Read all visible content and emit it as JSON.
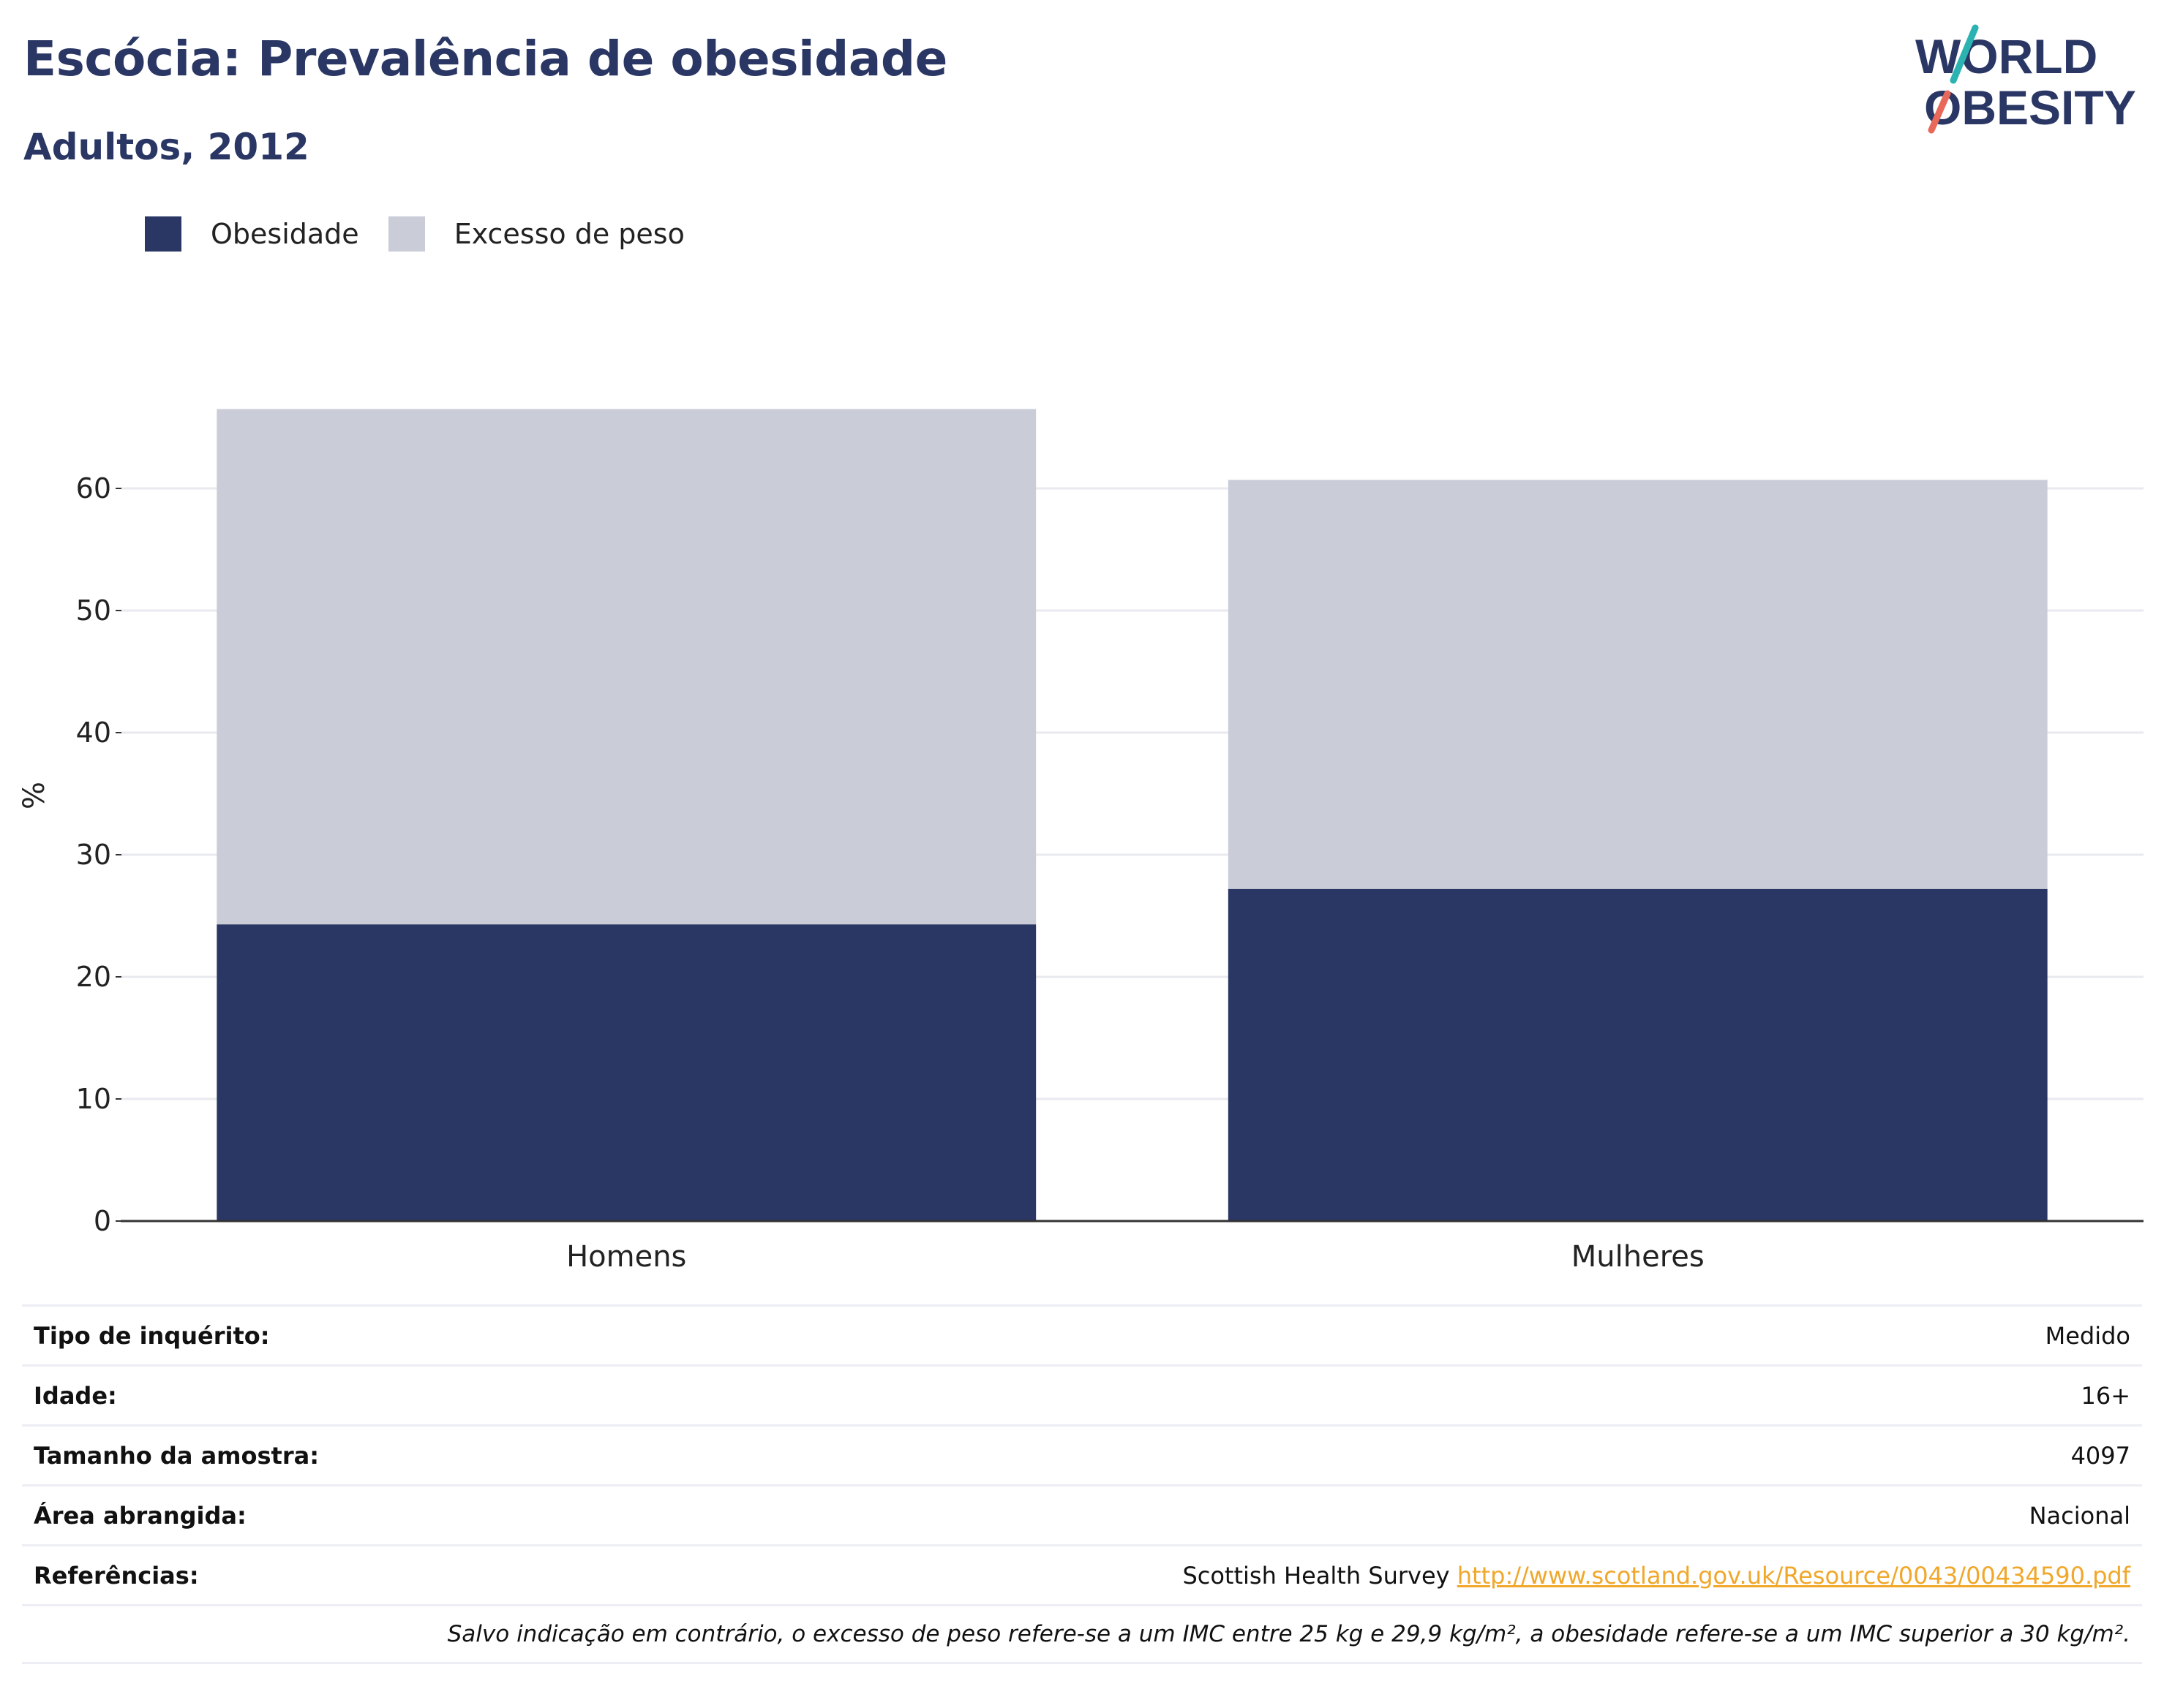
{
  "header": {
    "title": "Escócia: Prevalência de obesidade",
    "subtitle": "Adultos, 2012"
  },
  "logo": {
    "line1": "WORLD",
    "line2": "OBESITY"
  },
  "colors": {
    "obesity": "#2a3764",
    "overweight": "#caccd7",
    "accent_teal": "#2bb3b1",
    "accent_coral": "#e8685a",
    "link": "#f0a72a"
  },
  "legend": [
    {
      "label": "Obesidade",
      "color": "#2a3764"
    },
    {
      "label": "Excesso de peso",
      "color": "#caccd7"
    }
  ],
  "chart_data": {
    "type": "bar",
    "stacked": true,
    "categories": [
      "Homens",
      "Mulheres"
    ],
    "series": [
      {
        "name": "Obesidade",
        "values": [
          24.3,
          27.2
        ]
      },
      {
        "name": "Excesso de peso",
        "values": [
          42.2,
          33.5
        ]
      }
    ],
    "ylabel": "%",
    "ylim": [
      0,
      70
    ],
    "yticks": [
      0,
      10,
      20,
      30,
      40,
      50,
      60
    ],
    "grid": true,
    "legend_position": "top-left"
  },
  "meta": {
    "rows": [
      {
        "label": "Tipo de inquérito:",
        "value": "Medido"
      },
      {
        "label": "Idade:",
        "value": "16+"
      },
      {
        "label": "Tamanho da amostra:",
        "value": "4097"
      },
      {
        "label": "Área abrangida:",
        "value": "Nacional"
      }
    ],
    "references": {
      "label": "Referências:",
      "source": "Scottish Health Survey",
      "url": "http://www.scotland.gov.uk/Resource/0043/00434590.pdf"
    },
    "note": "Salvo indicação em contrário, o excesso de peso refere-se a um IMC entre 25 kg e 29,9 kg/m², a obesidade refere-se a um IMC superior a 30 kg/m²."
  }
}
